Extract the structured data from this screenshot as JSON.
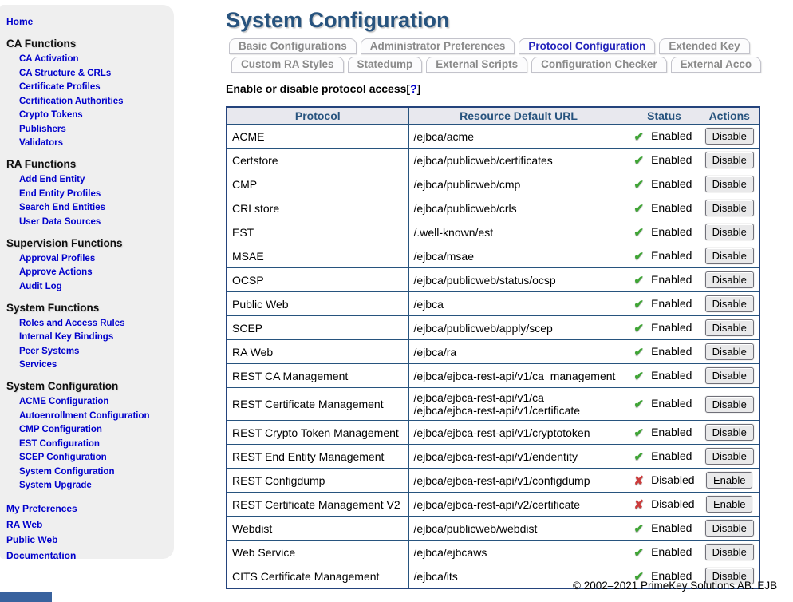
{
  "page": {
    "title": "System Configuration",
    "copyright": "© 2002–2021 PrimeKey Solutions AB. EJB"
  },
  "sidebar": {
    "home": "Home",
    "sections": [
      {
        "title": "CA Functions",
        "items": [
          "CA Activation",
          "CA Structure & CRLs",
          "Certificate Profiles",
          "Certification Authorities",
          "Crypto Tokens",
          "Publishers",
          "Validators"
        ]
      },
      {
        "title": "RA Functions",
        "items": [
          "Add End Entity",
          "End Entity Profiles",
          "Search End Entities",
          "User Data Sources"
        ]
      },
      {
        "title": "Supervision Functions",
        "items": [
          "Approval Profiles",
          "Approve Actions",
          "Audit Log"
        ]
      },
      {
        "title": "System Functions",
        "items": [
          "Roles and Access Rules",
          "Internal Key Bindings",
          "Peer Systems",
          "Services"
        ]
      },
      {
        "title": "System Configuration",
        "items": [
          "ACME Configuration",
          "Autoenrollment Configuration",
          "CMP Configuration",
          "EST Configuration",
          "SCEP Configuration",
          "System Configuration",
          "System Upgrade"
        ]
      }
    ],
    "footer_links": [
      "My Preferences",
      "RA Web",
      "Public Web",
      "Documentation"
    ]
  },
  "tabs": {
    "rows": [
      [
        {
          "label": "Basic Configurations",
          "active": false
        },
        {
          "label": "Administrator Preferences",
          "active": false
        },
        {
          "label": "Protocol Configuration",
          "active": true
        },
        {
          "label": "Extended Key",
          "active": false
        }
      ],
      [
        {
          "label": "Custom RA Styles",
          "active": false
        },
        {
          "label": "Statedump",
          "active": false
        },
        {
          "label": "External Scripts",
          "active": false
        },
        {
          "label": "Configuration Checker",
          "active": false
        },
        {
          "label": "External Acco",
          "active": false
        }
      ]
    ]
  },
  "content": {
    "intro_text": "Enable or disable protocol access",
    "help_label": "?"
  },
  "table": {
    "headers": [
      "Protocol",
      "Resource Default URL",
      "Status",
      "Actions"
    ],
    "status_icons": {
      "enabled": "✔",
      "disabled": "✘"
    },
    "rows": [
      {
        "protocol": "ACME",
        "url": "/ejbca/acme",
        "status": "Enabled",
        "action": "Disable"
      },
      {
        "protocol": "Certstore",
        "url": "/ejbca/publicweb/certificates",
        "status": "Enabled",
        "action": "Disable"
      },
      {
        "protocol": "CMP",
        "url": "/ejbca/publicweb/cmp",
        "status": "Enabled",
        "action": "Disable"
      },
      {
        "protocol": "CRLstore",
        "url": "/ejbca/publicweb/crls",
        "status": "Enabled",
        "action": "Disable"
      },
      {
        "protocol": "EST",
        "url": "/.well-known/est",
        "status": "Enabled",
        "action": "Disable"
      },
      {
        "protocol": "MSAE",
        "url": "/ejbca/msae",
        "status": "Enabled",
        "action": "Disable"
      },
      {
        "protocol": "OCSP",
        "url": "/ejbca/publicweb/status/ocsp",
        "status": "Enabled",
        "action": "Disable"
      },
      {
        "protocol": "Public Web",
        "url": "/ejbca",
        "status": "Enabled",
        "action": "Disable"
      },
      {
        "protocol": "SCEP",
        "url": "/ejbca/publicweb/apply/scep",
        "status": "Enabled",
        "action": "Disable"
      },
      {
        "protocol": "RA Web",
        "url": "/ejbca/ra",
        "status": "Enabled",
        "action": "Disable"
      },
      {
        "protocol": "REST CA Management",
        "url": "/ejbca/ejbca-rest-api/v1/ca_management",
        "status": "Enabled",
        "action": "Disable"
      },
      {
        "protocol": "REST Certificate Management",
        "url": "/ejbca/ejbca-rest-api/v1/ca\n/ejbca/ejbca-rest-api/v1/certificate",
        "status": "Enabled",
        "action": "Disable"
      },
      {
        "protocol": "REST Crypto Token Management",
        "url": "/ejbca/ejbca-rest-api/v1/cryptotoken",
        "status": "Enabled",
        "action": "Disable"
      },
      {
        "protocol": "REST End Entity Management",
        "url": "/ejbca/ejbca-rest-api/v1/endentity",
        "status": "Enabled",
        "action": "Disable"
      },
      {
        "protocol": "REST Configdump",
        "url": "/ejbca/ejbca-rest-api/v1/configdump",
        "status": "Disabled",
        "action": "Enable"
      },
      {
        "protocol": "REST Certificate Management V2",
        "url": "/ejbca/ejbca-rest-api/v2/certificate",
        "status": "Disabled",
        "action": "Enable"
      },
      {
        "protocol": "Webdist",
        "url": "/ejbca/publicweb/webdist",
        "status": "Enabled",
        "action": "Disable"
      },
      {
        "protocol": "Web Service",
        "url": "/ejbca/ejbcaws",
        "status": "Enabled",
        "action": "Disable"
      },
      {
        "protocol": "CITS Certificate Management",
        "url": "/ejbca/its",
        "status": "Enabled",
        "action": "Disable"
      }
    ]
  },
  "colors": {
    "accent_blue": "#27537e",
    "link_blue": "#0000cc",
    "active_tab_blue": "#2323bb",
    "inactive_tab_grey": "#8a8a8a",
    "enabled_green": "#3fa535",
    "disabled_red": "#cc3b3b",
    "sidebar_grey": "#efefef",
    "table_header_bg": "#e8e8ee",
    "footer_bar_blue": "#39629e"
  }
}
